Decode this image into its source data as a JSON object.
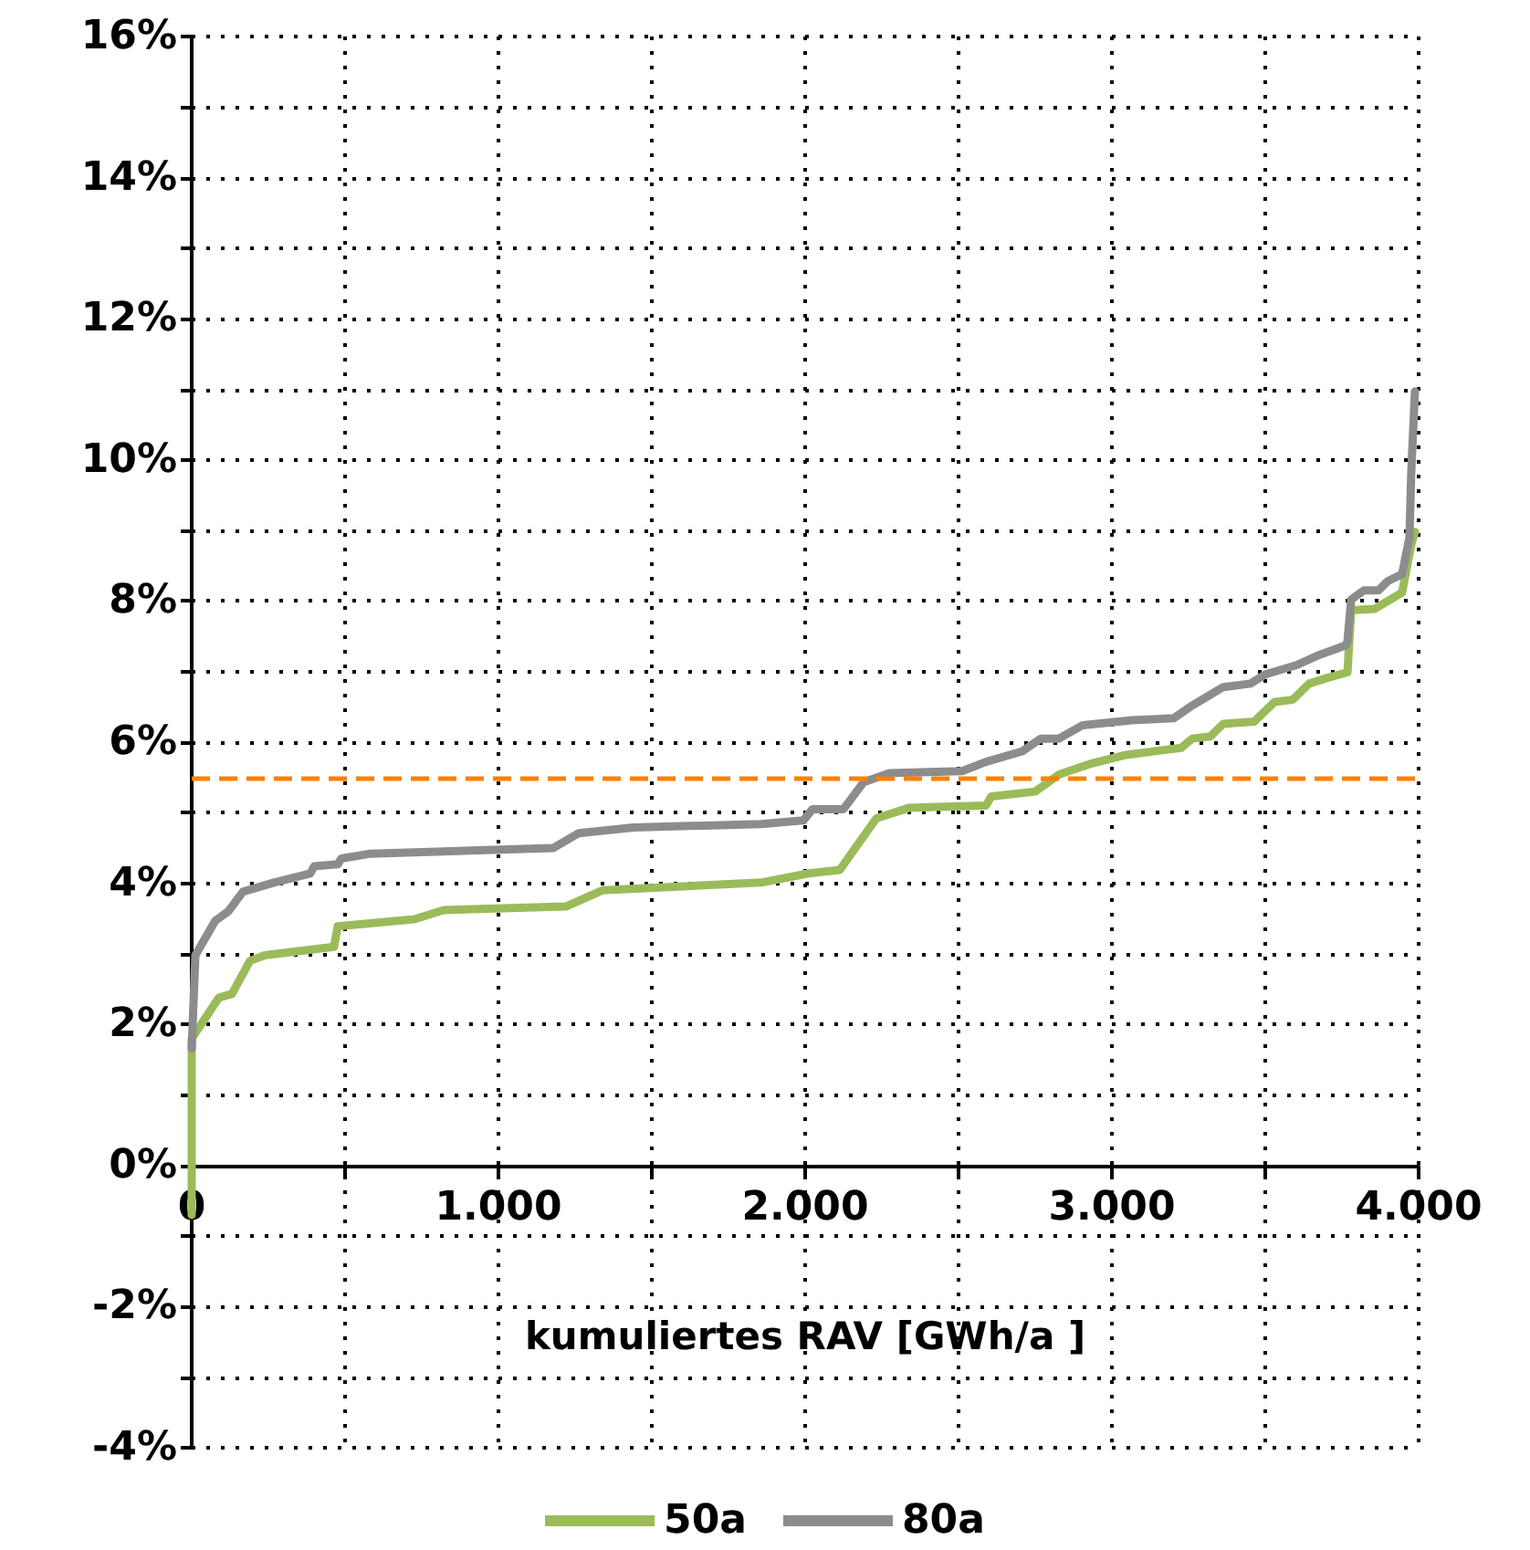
{
  "chart_data": {
    "type": "line",
    "xlabel": "kumuliertes RAV [GWh/a ]",
    "xlim": [
      0,
      4000
    ],
    "ylim": [
      -4,
      16
    ],
    "xticks": [
      {
        "value": 0,
        "label": "0"
      },
      {
        "value": 500,
        "label": null
      },
      {
        "value": 1000,
        "label": "1.000"
      },
      {
        "value": 1500,
        "label": null
      },
      {
        "value": 2000,
        "label": "2.000"
      },
      {
        "value": 2500,
        "label": null
      },
      {
        "value": 3000,
        "label": "3.000"
      },
      {
        "value": 3500,
        "label": null
      },
      {
        "value": 4000,
        "label": "4.000"
      }
    ],
    "yticks": [
      {
        "value": -4,
        "label": "-4%"
      },
      {
        "value": -3,
        "label": null
      },
      {
        "value": -2,
        "label": "-2%"
      },
      {
        "value": -1,
        "label": null
      },
      {
        "value": 0,
        "label": "0%"
      },
      {
        "value": 1,
        "label": null
      },
      {
        "value": 2,
        "label": "2%"
      },
      {
        "value": 3,
        "label": null
      },
      {
        "value": 4,
        "label": "4%"
      },
      {
        "value": 5,
        "label": null
      },
      {
        "value": 6,
        "label": "6%"
      },
      {
        "value": 7,
        "label": null
      },
      {
        "value": 8,
        "label": "8%"
      },
      {
        "value": 9,
        "label": null
      },
      {
        "value": 10,
        "label": "10%"
      },
      {
        "value": 11,
        "label": null
      },
      {
        "value": 12,
        "label": "12%"
      },
      {
        "value": 13,
        "label": null
      },
      {
        "value": 14,
        "label": "14%"
      },
      {
        "value": 15,
        "label": null
      },
      {
        "value": 16,
        "label": "16%"
      }
    ],
    "grid": true,
    "legend": "bottom",
    "marker": "none",
    "line_style": "solid",
    "ref_lines": [
      {
        "axis": "y",
        "value": 5.5,
        "color": "#ff8000",
        "line_style": "dashed"
      }
    ],
    "series": [
      {
        "name": "50a",
        "color": "#9bbb59",
        "x": [
          0,
          0,
          89,
          131,
          190,
          238,
          464,
          476,
          726,
          821,
          1220,
          1339,
          1857,
          2012,
          2113,
          2232,
          2339,
          2589,
          2607,
          2750,
          2827,
          2928,
          3047,
          3226,
          3262,
          3321,
          3363,
          3464,
          3530,
          3589,
          3643,
          3702,
          3768,
          3780,
          3857,
          3946,
          3976,
          3988
        ],
        "values": [
          -0.7,
          1.8,
          2.38,
          2.43,
          2.9,
          2.98,
          3.1,
          3.39,
          3.49,
          3.62,
          3.67,
          3.9,
          4.01,
          4.14,
          4.19,
          4.92,
          5.07,
          5.1,
          5.23,
          5.3,
          5.54,
          5.69,
          5.82,
          5.92,
          6.05,
          6.08,
          6.26,
          6.29,
          6.57,
          6.6,
          6.83,
          6.91,
          6.99,
          7.87,
          7.89,
          8.12,
          8.8,
          8.98
        ]
      },
      {
        "name": "80a",
        "color": "#8c8c8c",
        "x": [
          0,
          12,
          77,
          119,
          167,
          268,
          387,
          399,
          476,
          488,
          583,
          1179,
          1262,
          1440,
          1857,
          1994,
          2024,
          2125,
          2190,
          2274,
          2512,
          2589,
          2708,
          2768,
          2827,
          2905,
          3065,
          3202,
          3262,
          3363,
          3452,
          3500,
          3601,
          3678,
          3762,
          3768,
          3780,
          3821,
          3869,
          3899,
          3946,
          3970,
          3976,
          3988
        ],
        "values": [
          1.66,
          2.98,
          3.47,
          3.6,
          3.88,
          4.01,
          4.14,
          4.24,
          4.27,
          4.35,
          4.42,
          4.5,
          4.71,
          4.79,
          4.84,
          4.89,
          5.05,
          5.05,
          5.43,
          5.56,
          5.59,
          5.72,
          5.87,
          6.05,
          6.05,
          6.24,
          6.31,
          6.34,
          6.52,
          6.78,
          6.83,
          6.96,
          7.09,
          7.24,
          7.37,
          7.43,
          8.02,
          8.15,
          8.15,
          8.28,
          8.38,
          8.9,
          9.83,
          10.97
        ]
      }
    ]
  }
}
